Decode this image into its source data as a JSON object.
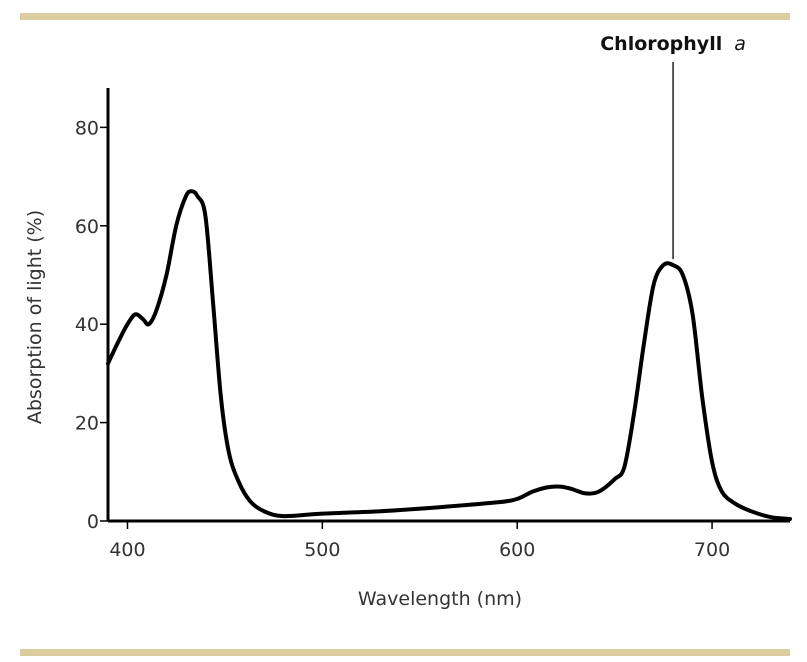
{
  "chart_data": {
    "type": "line",
    "xlabel": "Wavelength (nm)",
    "ylabel": "Absorption of light (%)",
    "xlim": [
      390,
      740
    ],
    "ylim": [
      0,
      88
    ],
    "x_ticks": [
      400,
      500,
      600,
      700
    ],
    "y_ticks": [
      0,
      20,
      40,
      60,
      80
    ],
    "grid": false,
    "legend": "none",
    "series": [
      {
        "values": [
          [
            390,
            32
          ],
          [
            396,
            37
          ],
          [
            400,
            40
          ],
          [
            404,
            42
          ],
          [
            408,
            41
          ],
          [
            411,
            40
          ],
          [
            415,
            43
          ],
          [
            420,
            50
          ],
          [
            425,
            60
          ],
          [
            430,
            66
          ],
          [
            433,
            67
          ],
          [
            436,
            66
          ],
          [
            440,
            62
          ],
          [
            444,
            44
          ],
          [
            448,
            25
          ],
          [
            452,
            14
          ],
          [
            457,
            8
          ],
          [
            463,
            4
          ],
          [
            470,
            2
          ],
          [
            480,
            1
          ],
          [
            500,
            1.5
          ],
          [
            530,
            2
          ],
          [
            560,
            2.8
          ],
          [
            590,
            3.8
          ],
          [
            600,
            4.5
          ],
          [
            608,
            6
          ],
          [
            615,
            6.8
          ],
          [
            622,
            7
          ],
          [
            628,
            6.5
          ],
          [
            635,
            5.6
          ],
          [
            642,
            6
          ],
          [
            650,
            8.5
          ],
          [
            655,
            11
          ],
          [
            660,
            22
          ],
          [
            665,
            36
          ],
          [
            670,
            48
          ],
          [
            675,
            52
          ],
          [
            680,
            52
          ],
          [
            685,
            50
          ],
          [
            690,
            42
          ],
          [
            695,
            25
          ],
          [
            700,
            12
          ],
          [
            705,
            6
          ],
          [
            712,
            3.5
          ],
          [
            720,
            2
          ],
          [
            730,
            0.8
          ],
          [
            740,
            0.4
          ]
        ],
        "color": "#000000"
      }
    ],
    "annotations": [
      {
        "text": "Chlorophyll",
        "text_italic": "a",
        "x": 680,
        "y": 52
      }
    ]
  },
  "colors": {
    "rule": "#dccda1",
    "line": "#000000",
    "text": "#333333"
  }
}
